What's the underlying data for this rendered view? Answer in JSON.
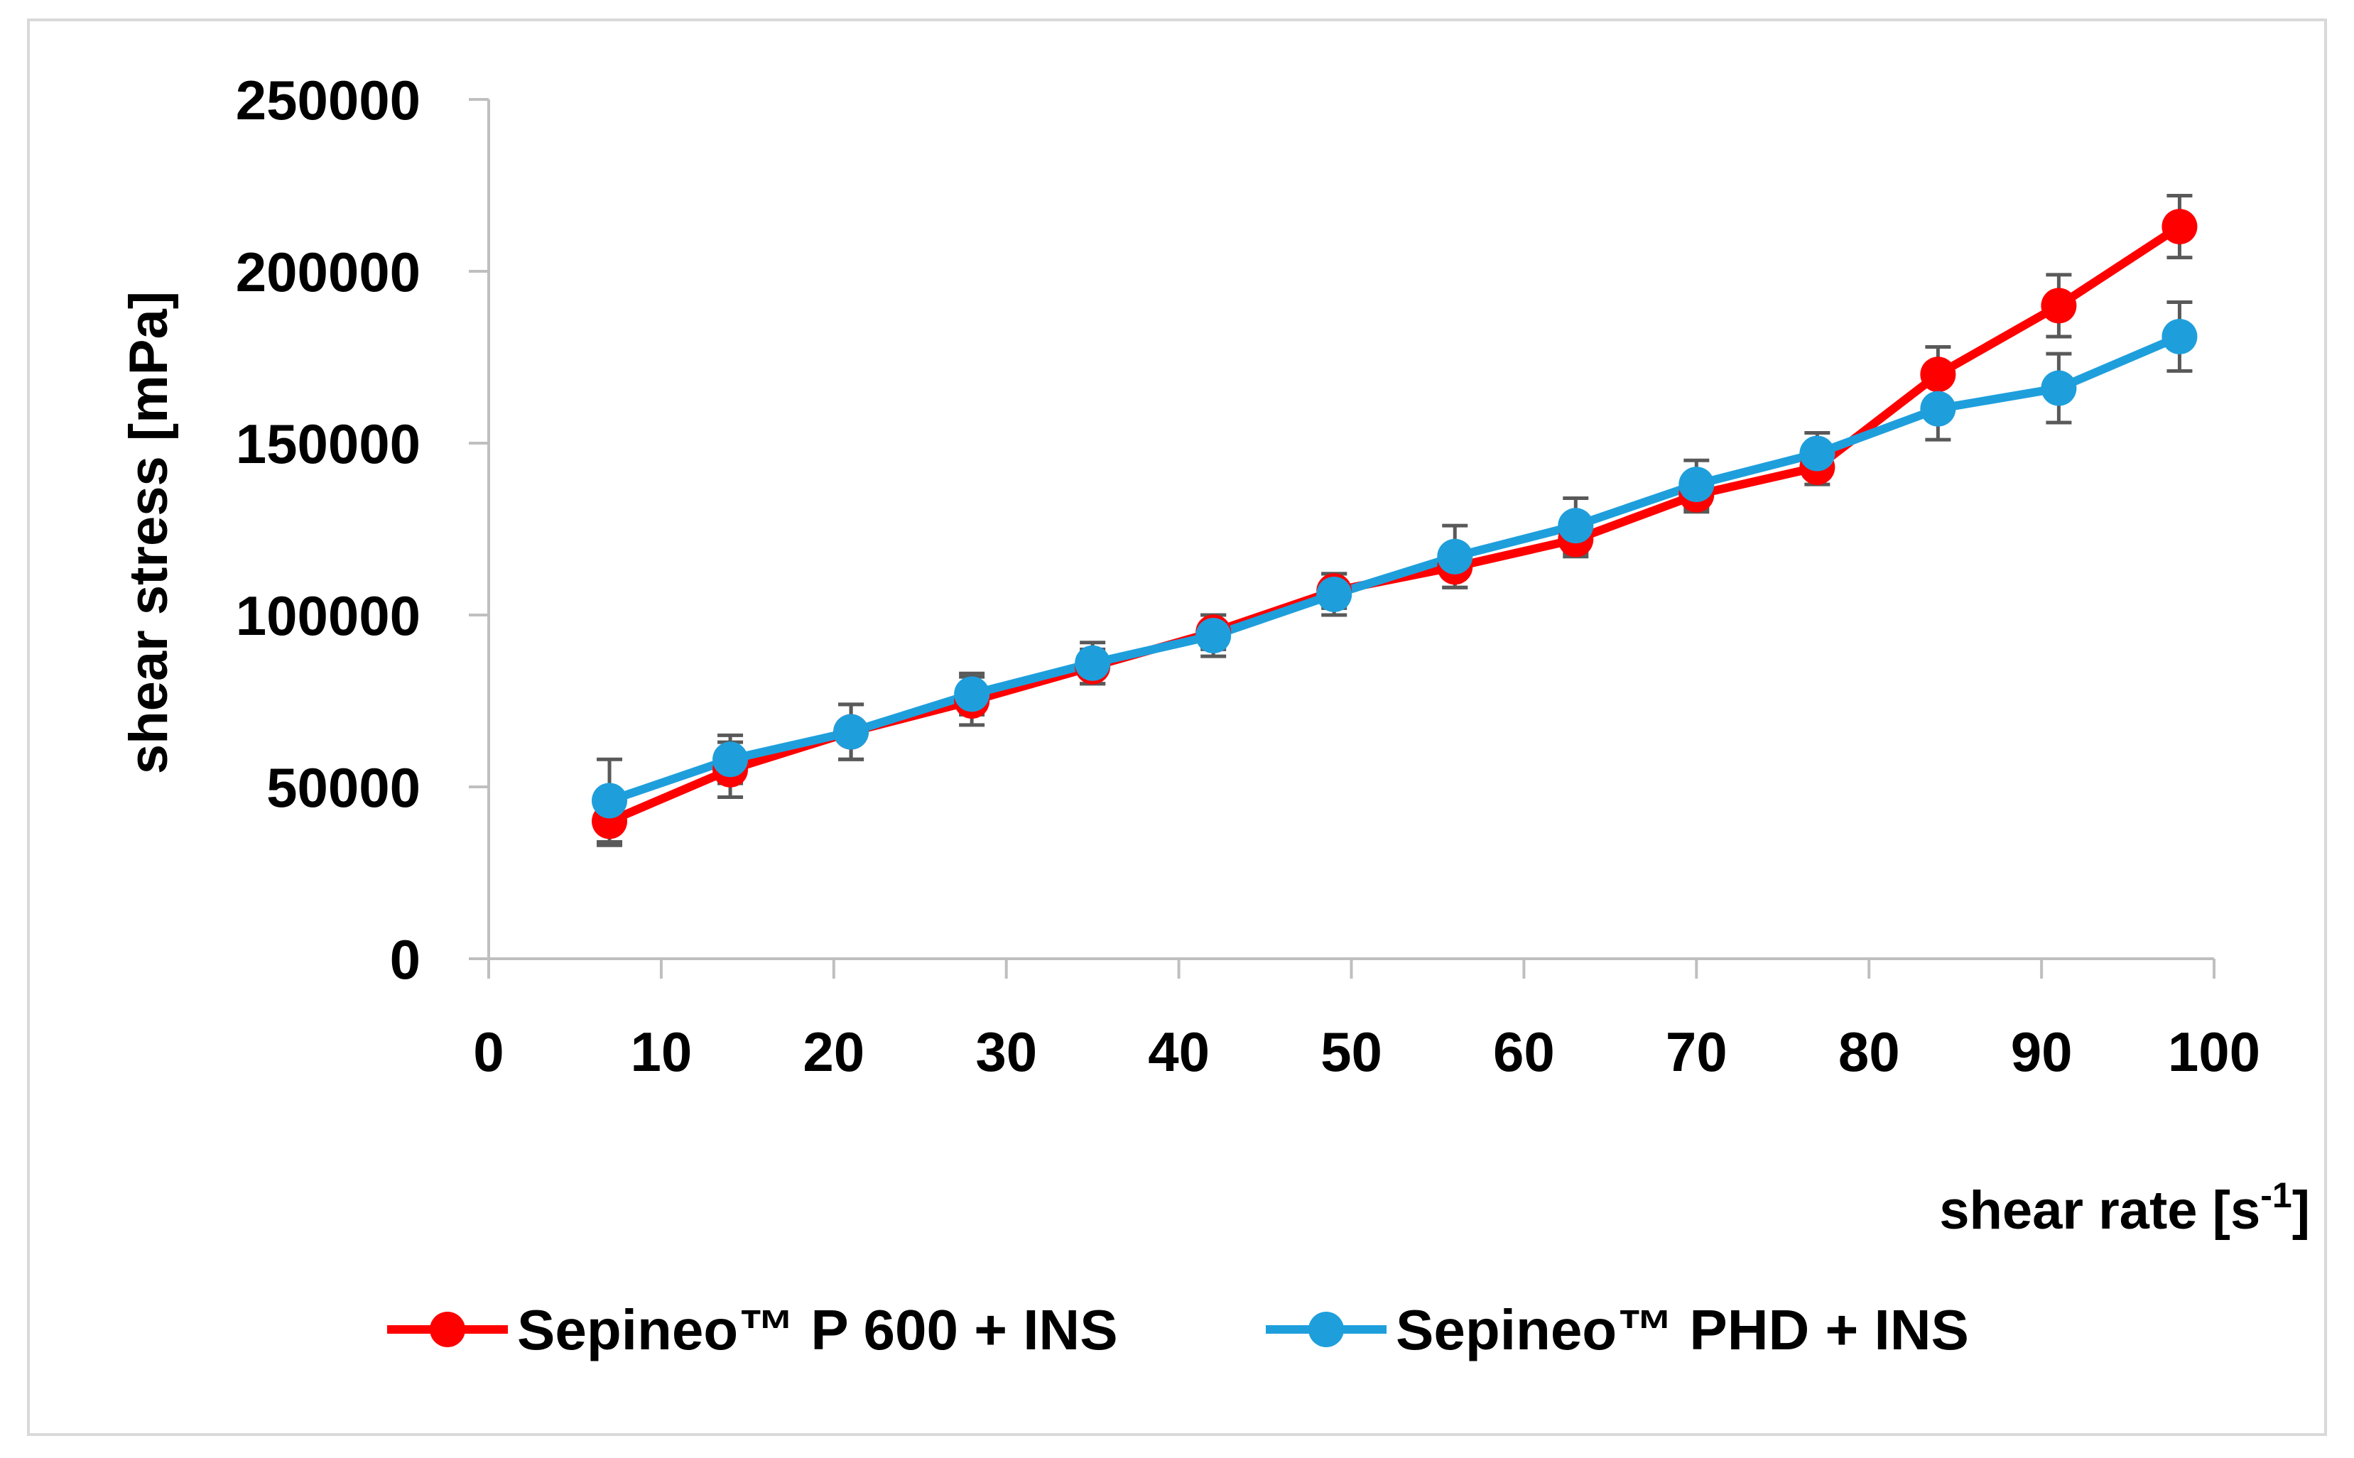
{
  "chart_data": {
    "type": "line",
    "title": "",
    "xlabel": "shear rate [s",
    "xlabel_superscript": "-1",
    "xlabel_suffix": "]",
    "ylabel": "shear stress [mPa]",
    "xlim": [
      0,
      100
    ],
    "ylim": [
      0,
      250000
    ],
    "x_ticks": [
      "0",
      "10",
      "20",
      "30",
      "40",
      "50",
      "60",
      "70",
      "80",
      "90",
      "100"
    ],
    "y_ticks": [
      "0",
      "50000",
      "100000",
      "150000",
      "200000",
      "250000"
    ],
    "x_tick_values": [
      0,
      10,
      20,
      30,
      40,
      50,
      60,
      70,
      80,
      90,
      100
    ],
    "y_tick_values": [
      0,
      50000,
      100000,
      150000,
      200000,
      250000
    ],
    "grid": false,
    "legend_position": "bottom",
    "x": [
      7,
      14,
      21,
      28,
      35,
      42,
      49,
      56,
      63,
      70,
      77,
      84,
      91,
      98
    ],
    "series": [
      {
        "name": "Sepineo™ P 600 + INS",
        "color": "#ff0000",
        "values": [
          40000,
          55000,
          66000,
          75000,
          85000,
          95000,
          107000,
          114000,
          122000,
          135000,
          143000,
          170000,
          190000,
          213000
        ],
        "error": [
          7000,
          8000,
          8000,
          7000,
          5000,
          5000,
          5000,
          6000,
          5000,
          5000,
          5000,
          8000,
          9000,
          9000
        ]
      },
      {
        "name": "Sepineo™ PHD + INS",
        "color": "#1e9fdc",
        "values": [
          46000,
          58000,
          66000,
          77000,
          86000,
          94000,
          106000,
          117000,
          126000,
          138000,
          147000,
          160000,
          166000,
          181000
        ],
        "error": [
          12000,
          7000,
          8000,
          6000,
          6000,
          6000,
          6000,
          9000,
          8000,
          7000,
          6000,
          9000,
          10000,
          10000
        ]
      }
    ]
  },
  "colors": {
    "axis": "#bfbfbf",
    "error_bar": "#595959",
    "frame": "#d9d9d9"
  }
}
